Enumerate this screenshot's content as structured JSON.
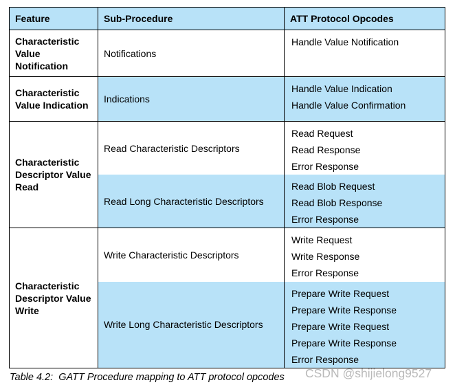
{
  "table": {
    "header": {
      "feature": "Feature",
      "sub_procedure": "Sub-Procedure",
      "opcodes": "ATT Protocol Opcodes"
    },
    "groups": [
      {
        "feature": "Characteristic Value Notification",
        "rows": [
          {
            "sub": "Notifications",
            "shaded": false,
            "opcodes": [
              "Handle Value Notification"
            ]
          }
        ]
      },
      {
        "feature": "Characteristic Value Indication",
        "rows": [
          {
            "sub": "Indications",
            "shaded": true,
            "opcodes": [
              "Handle Value Indication",
              "Handle Value Confirmation"
            ]
          }
        ]
      },
      {
        "feature": "Characteristic Descriptor Value Read",
        "rows": [
          {
            "sub": "Read Characteristic Descriptors",
            "shaded": false,
            "opcodes": [
              "Read Request",
              "Read Response",
              "Error Response"
            ]
          },
          {
            "sub": "Read Long Characteristic Descriptors",
            "shaded": true,
            "opcodes": [
              "Read Blob Request",
              "Read Blob Response",
              "Error Response"
            ]
          }
        ]
      },
      {
        "feature": "Characteristic Descriptor Value Write",
        "rows": [
          {
            "sub": "Write Characteristic Descriptors",
            "shaded": false,
            "opcodes": [
              "Write Request",
              "Write Response",
              "Error Response"
            ]
          },
          {
            "sub": "Write Long Characteristic Descriptors",
            "shaded": true,
            "opcodes": [
              "Prepare Write Request",
              "Prepare Write Response",
              "Prepare Write Request",
              "Prepare Write Response",
              "Error Response"
            ]
          }
        ]
      }
    ]
  },
  "caption": "Table 4.2:  GATT Procedure mapping to ATT protocol opcodes",
  "watermark": "CSDN @shijielong9527",
  "colors": {
    "shaded_blue": "#b8e2f8",
    "border_black": "#000000",
    "watermark_gray": "#b9b9b9"
  }
}
